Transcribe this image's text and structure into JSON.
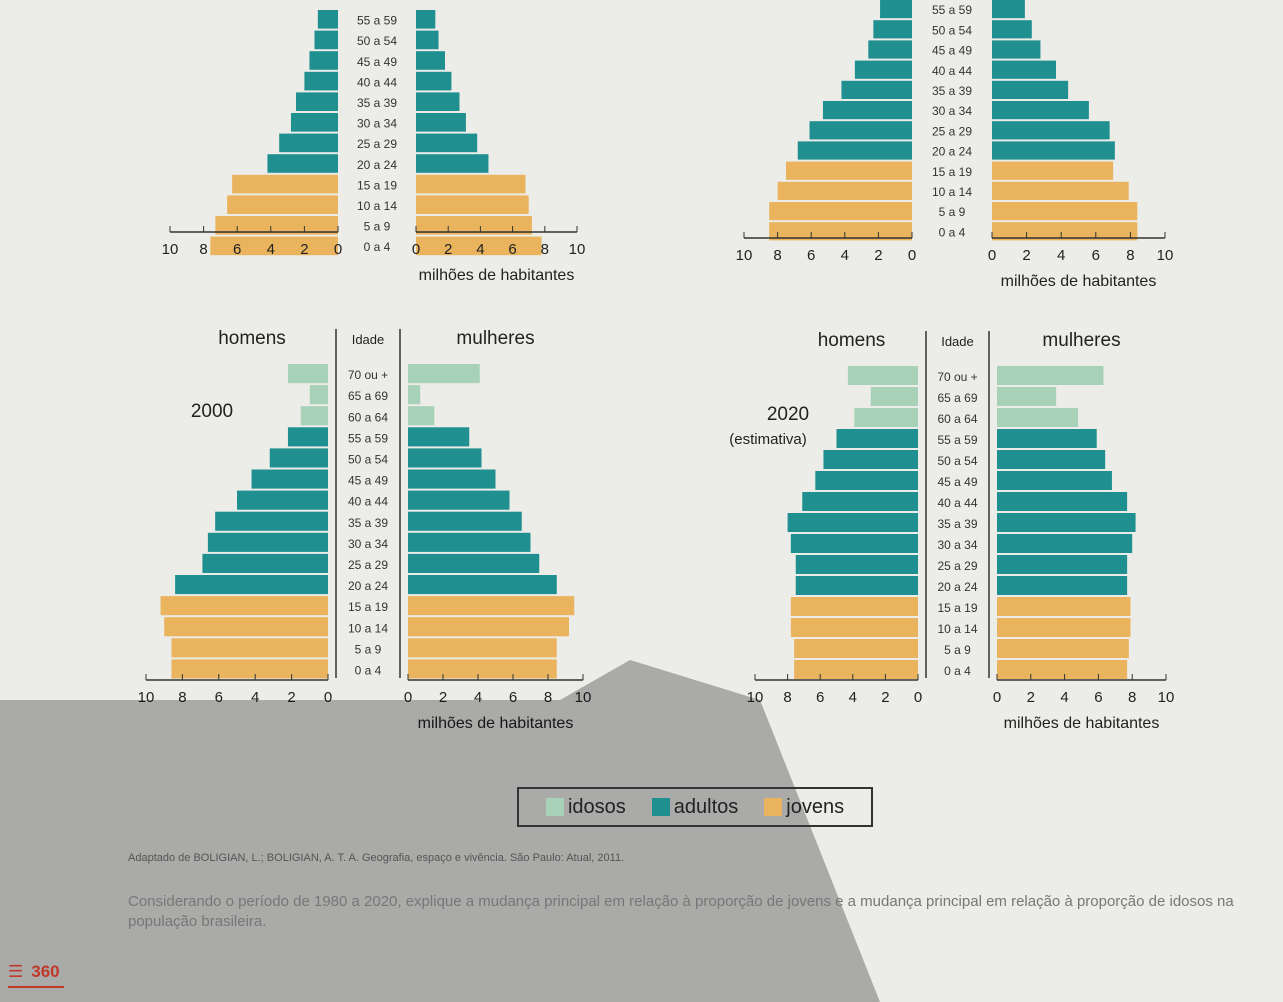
{
  "colors": {
    "idosos": "#a8d2b8",
    "adultos": "#1f8f8f",
    "jovens": "#e9b45d",
    "background": "#ecece9",
    "shadow": "#8c8c8a"
  },
  "common": {
    "homens": "homens",
    "mulheres": "mulheres",
    "idade": "Idade",
    "xlabel": "milhões de habitantes",
    "ticks_left": [
      "10",
      "8",
      "6",
      "4",
      "2",
      "0"
    ],
    "ticks_right": [
      "0",
      "2",
      "4",
      "6",
      "8",
      "10"
    ]
  },
  "chart_data": [
    {
      "type": "bar",
      "orientation": "population-pyramid",
      "year_label": "",
      "xlabel": "milhões de habitantes",
      "xlim": [
        0,
        10
      ],
      "age_groups": [
        "55 a 59",
        "50 a 54",
        "45 a 49",
        "40 a 44",
        "35 a 39",
        "30 a 34",
        "25 a 29",
        "20 a 24",
        "15 a 19",
        "10 a 14",
        "5 a 9",
        "0 a 4"
      ],
      "groups": [
        "adultos",
        "adultos",
        "adultos",
        "adultos",
        "adultos",
        "adultos",
        "adultos",
        "adultos",
        "jovens",
        "jovens",
        "jovens",
        "jovens"
      ],
      "series": [
        {
          "name": "homens",
          "values": [
            1.2,
            1.4,
            1.7,
            2.0,
            2.5,
            2.8,
            3.5,
            4.2,
            6.3,
            6.6,
            7.3,
            7.6
          ]
        },
        {
          "name": "mulheres",
          "values": [
            1.2,
            1.4,
            1.8,
            2.2,
            2.7,
            3.1,
            3.8,
            4.5,
            6.8,
            7.0,
            7.2,
            7.8
          ]
        }
      ]
    },
    {
      "type": "bar",
      "orientation": "population-pyramid",
      "year_label": "",
      "xlabel": "milhões de habitantes",
      "xlim": [
        0,
        10
      ],
      "age_groups": [
        "55 a 59",
        "50 a 54",
        "45 a 49",
        "40 a 44",
        "35 a 39",
        "30 a 34",
        "25 a 29",
        "20 a 24",
        "15 a 19",
        "10 a 14",
        "5 a 9",
        "0 a 4"
      ],
      "groups": [
        "adultos",
        "adultos",
        "adultos",
        "adultos",
        "adultos",
        "adultos",
        "adultos",
        "adultos",
        "jovens",
        "jovens",
        "jovens",
        "jovens"
      ],
      "series": [
        {
          "name": "homens",
          "values": [
            1.9,
            2.3,
            2.6,
            3.4,
            4.2,
            5.3,
            6.1,
            6.8,
            7.5,
            8.0,
            8.5,
            8.5
          ]
        },
        {
          "name": "mulheres",
          "values": [
            1.9,
            2.3,
            2.8,
            3.7,
            4.4,
            5.6,
            6.8,
            7.1,
            7.0,
            7.9,
            8.4,
            8.4
          ]
        }
      ]
    },
    {
      "type": "bar",
      "orientation": "population-pyramid",
      "year_label": "2000",
      "xlabel": "milhões de habitantes",
      "xlim": [
        0,
        10
      ],
      "age_groups": [
        "70 ou +",
        "65 a 69",
        "60 a 64",
        "55 a 59",
        "50 a 54",
        "45 a 49",
        "40 a 44",
        "35 a 39",
        "30 a 34",
        "25 a 29",
        "20 a 24",
        "15 a 19",
        "10 a 14",
        "5 a 9",
        "0 a 4"
      ],
      "groups": [
        "idosos",
        "idosos",
        "idosos",
        "adultos",
        "adultos",
        "adultos",
        "adultos",
        "adultos",
        "adultos",
        "adultos",
        "adultos",
        "jovens",
        "jovens",
        "jovens",
        "jovens"
      ],
      "series": [
        {
          "name": "homens",
          "values": [
            2.2,
            1.0,
            1.5,
            2.2,
            3.2,
            4.2,
            5.0,
            6.2,
            6.6,
            6.9,
            8.4,
            9.2,
            9.0,
            8.6,
            8.6
          ]
        },
        {
          "name": "mulheres",
          "values": [
            4.1,
            0.7,
            1.5,
            3.5,
            4.2,
            5.0,
            5.8,
            6.5,
            7.0,
            7.5,
            8.5,
            9.5,
            9.2,
            8.5,
            8.5
          ]
        }
      ]
    },
    {
      "type": "bar",
      "orientation": "population-pyramid",
      "year_label": "2020",
      "year_note": "(estimativa)",
      "xlabel": "milhões de habitantes",
      "xlim": [
        0,
        10
      ],
      "age_groups": [
        "70 ou +",
        "65 a 69",
        "60 a 64",
        "55 a 59",
        "50 a 54",
        "45 a 49",
        "40 a 44",
        "35 a 39",
        "30 a 34",
        "25 a 29",
        "20 a 24",
        "15 a 19",
        "10 a 14",
        "5 a 9",
        "0 a 4"
      ],
      "groups": [
        "idosos",
        "idosos",
        "idosos",
        "adultos",
        "adultos",
        "adultos",
        "adultos",
        "adultos",
        "adultos",
        "adultos",
        "adultos",
        "jovens",
        "jovens",
        "jovens",
        "jovens"
      ],
      "series": [
        {
          "name": "homens",
          "values": [
            4.3,
            2.9,
            3.9,
            5.0,
            5.8,
            6.3,
            7.1,
            8.0,
            7.8,
            7.5,
            7.5,
            7.8,
            7.8,
            7.6,
            7.6
          ]
        },
        {
          "name": "mulheres",
          "values": [
            6.3,
            3.5,
            4.8,
            5.9,
            6.4,
            6.8,
            7.7,
            8.2,
            8.0,
            7.7,
            7.7,
            7.9,
            7.9,
            7.8,
            7.7
          ]
        }
      ]
    }
  ],
  "legend": {
    "idosos": "idosos",
    "adultos": "adultos",
    "jovens": "jovens"
  },
  "source": "Adaptado de BOLIGIAN, L.; BOLIGIAN, A. T. A. Geografia, espaço e vivência. São Paulo: Atual, 2011.",
  "question": "Considerando o período de 1980 a 2020, explique a mudança principal em relação à proporção de jovens e a mudança principal em relação à proporção de idosos na população brasileira.",
  "page_number": "360"
}
